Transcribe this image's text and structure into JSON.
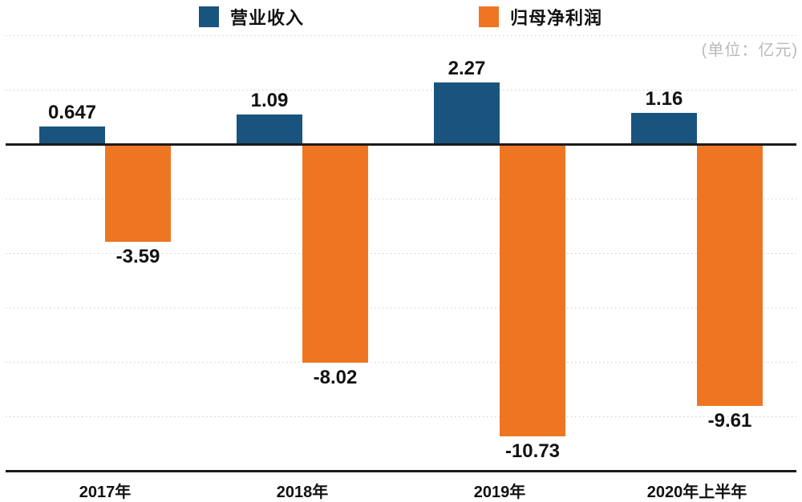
{
  "chart_data": {
    "type": "bar",
    "categories": [
      "2017年",
      "2018年",
      "2019年",
      "2020年上半年"
    ],
    "series": [
      {
        "name": "营业收入",
        "color": "#19547F",
        "values": [
          0.647,
          1.09,
          2.27,
          1.16
        ],
        "value_labels": [
          "0.647",
          "1.09",
          "2.27",
          "1.16"
        ]
      },
      {
        "name": "归母净利润",
        "color": "#EE7623",
        "values": [
          -3.59,
          -8.02,
          -10.73,
          -9.61
        ],
        "value_labels": [
          "-3.59",
          "-8.02",
          "-10.73",
          "-9.61"
        ]
      }
    ],
    "title": "",
    "xlabel": "",
    "ylabel": "",
    "unit_note": "(单位：亿元)",
    "ylim": [
      -12,
      4
    ],
    "gridline_values": [
      4,
      2,
      -2,
      -4,
      -6,
      -8,
      -10
    ],
    "zero_line_value": 0,
    "grid": "horizontal dotted",
    "legend_position": "top"
  },
  "legend": {
    "items": [
      {
        "label": "营业收入",
        "color": "#19547F"
      },
      {
        "label": "归母净利润",
        "color": "#EE7623"
      }
    ]
  },
  "unit_note": "(单位：亿元)",
  "colors": {
    "revenue_blue": "#19547F",
    "profit_orange": "#EE7623",
    "axis_black": "#1A1A1A",
    "gridline_gray": "#CFCFCF",
    "unit_text_gray": "#B9B9B9",
    "label_black": "#111111"
  }
}
